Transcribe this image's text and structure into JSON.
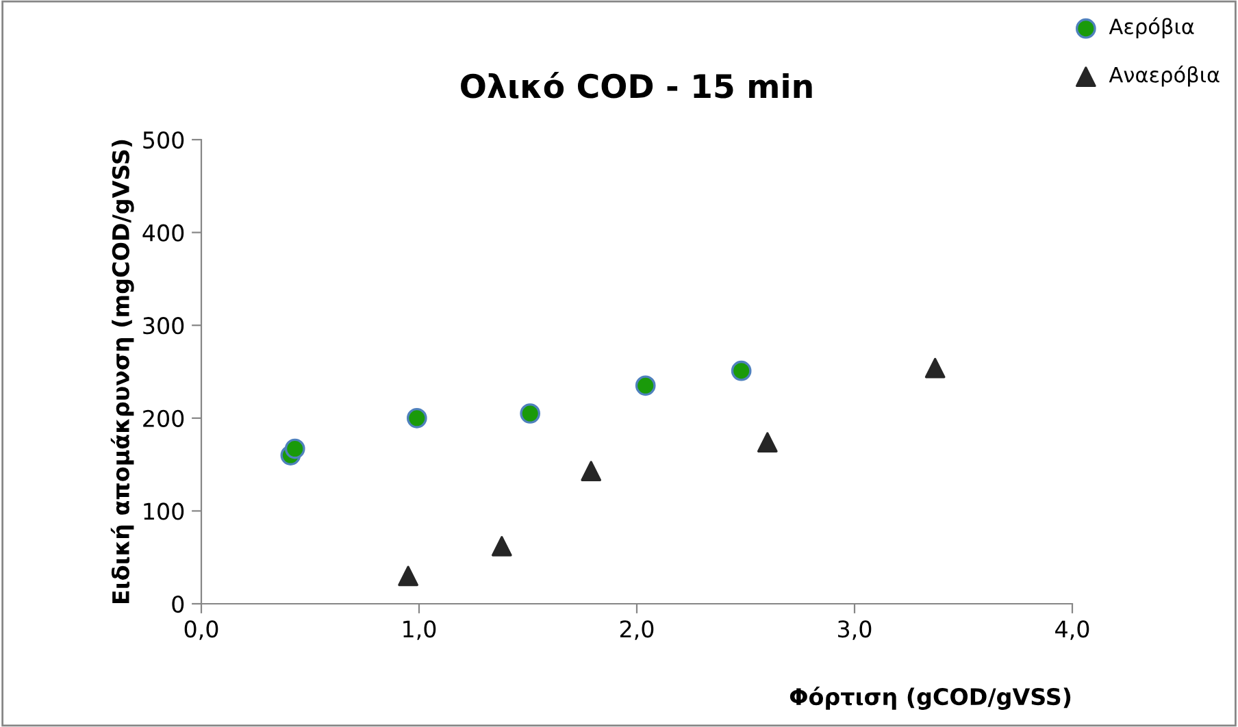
{
  "chart_data": {
    "type": "scatter",
    "title": "Ολικό COD - 15 min",
    "xlabel": "Φόρτιση (gCOD/gVSS)",
    "ylabel": "Ειδική απομάκρυνση (mgCOD/gVSS)",
    "xlim": [
      0,
      4
    ],
    "xticks": [
      {
        "value": 0,
        "label": "0,0"
      },
      {
        "value": 1,
        "label": "1,0"
      },
      {
        "value": 2,
        "label": "2,0"
      },
      {
        "value": 3,
        "label": "3,0"
      },
      {
        "value": 4,
        "label": "4,0"
      }
    ],
    "ylim": [
      0,
      500
    ],
    "yticks": [
      0,
      100,
      200,
      300,
      400,
      500
    ],
    "grid": false,
    "legend": "top right",
    "series": [
      {
        "name": "Αερόβια",
        "color": "#1a9a0a",
        "marker": "circle",
        "x": [
          0.41,
          0.43,
          0.99,
          1.51,
          2.04,
          2.48
        ],
        "values": [
          160,
          167,
          200,
          205,
          235,
          251
        ]
      },
      {
        "name": "Αναερόβια",
        "color": "#262626",
        "marker": "triangle",
        "x": [
          0.95,
          1.38,
          1.79,
          2.6,
          3.37
        ],
        "values": [
          30,
          62,
          143,
          174,
          254
        ]
      }
    ]
  }
}
